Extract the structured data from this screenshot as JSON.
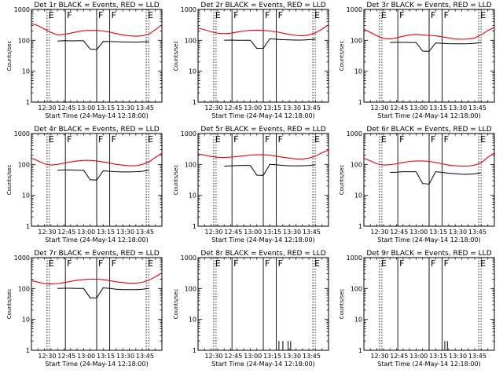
{
  "figure": {
    "ylabel": "Counts/sec",
    "xlabel": "Start Time (24-May-14 12:18:00)",
    "series_names": [
      "Events",
      "LLD"
    ],
    "colors": {
      "events": "#000000",
      "lld": "#e8000b",
      "axes": "#000000"
    },
    "x_range_min": [
      0,
      100
    ],
    "y_range": [
      1,
      1000
    ],
    "y_scale": "log",
    "x_tick_labels": [
      "12:30",
      "12:45",
      "13:00",
      "13:15",
      "13:30",
      "13:45"
    ],
    "y_tick_labels": [
      "1",
      "10",
      "100",
      "1000"
    ]
  },
  "chart_data": [
    {
      "type": "line",
      "title": "Det 1r BLACK = Events, RED = LLD",
      "xlabel": "Start Time (24-May-14 12:18:00)",
      "ylabel": "Counts/sec",
      "y_scale": "log",
      "ylim": [
        1,
        1000
      ],
      "x": [
        0,
        5,
        10,
        15,
        20,
        25,
        30,
        35,
        40,
        45,
        50,
        55,
        60,
        65,
        70,
        75,
        80,
        85,
        90,
        95,
        100
      ],
      "series": [
        {
          "values": [
            null,
            null,
            null,
            null,
            95,
            98,
            96,
            97,
            97,
            52,
            50,
            92,
            91,
            90,
            88,
            88,
            87,
            89,
            90,
            null,
            null
          ]
        },
        {
          "values": [
            350,
            300,
            230,
            180,
            150,
            155,
            170,
            190,
            205,
            210,
            210,
            200,
            185,
            165,
            150,
            140,
            135,
            140,
            160,
            220,
            320
          ]
        }
      ],
      "markers": [
        {
          "label": "E",
          "x_min": 12,
          "style": "dotted"
        },
        {
          "label": "F",
          "x_min": 26,
          "style": "solid"
        },
        {
          "label": "F",
          "x_min": 50,
          "style": "solid"
        },
        {
          "label": "F",
          "x_min": 60,
          "style": "solid"
        },
        {
          "label": "E",
          "x_min": 88,
          "style": "dotted"
        }
      ]
    },
    {
      "type": "line",
      "title": "Det 2r BLACK = Events, RED = LLD",
      "xlabel": "Start Time (24-May-14 12:18:00)",
      "ylabel": "Counts/sec",
      "y_scale": "log",
      "ylim": [
        1,
        1000
      ],
      "x": [
        0,
        5,
        10,
        15,
        20,
        25,
        30,
        35,
        40,
        45,
        50,
        55,
        60,
        65,
        70,
        75,
        80,
        85,
        90,
        95,
        100
      ],
      "series": [
        {
          "values": [
            null,
            null,
            null,
            null,
            100,
            102,
            100,
            101,
            101,
            55,
            55,
            112,
            108,
            105,
            103,
            102,
            102,
            105,
            110,
            null,
            null
          ]
        },
        {
          "values": [
            250,
            220,
            190,
            170,
            165,
            170,
            185,
            200,
            210,
            215,
            210,
            200,
            190,
            170,
            155,
            145,
            140,
            150,
            175,
            230,
            320
          ]
        }
      ],
      "markers": [
        {
          "label": "E",
          "x_min": 12,
          "style": "dotted"
        },
        {
          "label": "F",
          "x_min": 26,
          "style": "solid"
        },
        {
          "label": "F",
          "x_min": 50,
          "style": "solid"
        },
        {
          "label": "F",
          "x_min": 60,
          "style": "solid"
        },
        {
          "label": "E",
          "x_min": 88,
          "style": "dotted"
        }
      ]
    },
    {
      "type": "line",
      "title": "Det 3r BLACK = Events, RED = LLD",
      "xlabel": "Start Time (24-May-14 12:18:00)",
      "ylabel": "Counts/sec",
      "y_scale": "log",
      "ylim": [
        1,
        1000
      ],
      "x": [
        0,
        5,
        10,
        15,
        20,
        25,
        30,
        35,
        40,
        45,
        50,
        55,
        60,
        65,
        70,
        75,
        80,
        85,
        90,
        95,
        100
      ],
      "series": [
        {
          "values": [
            null,
            null,
            null,
            null,
            85,
            86,
            86,
            85,
            85,
            45,
            44,
            82,
            80,
            78,
            77,
            77,
            78,
            80,
            85,
            null,
            null
          ]
        },
        {
          "values": [
            230,
            180,
            140,
            115,
            110,
            120,
            135,
            150,
            155,
            150,
            145,
            140,
            130,
            120,
            110,
            108,
            110,
            120,
            150,
            210,
            260
          ]
        }
      ],
      "markers": [
        {
          "label": "E",
          "x_min": 12,
          "style": "dotted"
        },
        {
          "label": "F",
          "x_min": 26,
          "style": "solid"
        },
        {
          "label": "F",
          "x_min": 50,
          "style": "solid"
        },
        {
          "label": "F",
          "x_min": 60,
          "style": "solid"
        },
        {
          "label": "E",
          "x_min": 88,
          "style": "dotted"
        }
      ]
    },
    {
      "type": "line",
      "title": "Det 4r BLACK = Events, RED = LLD",
      "xlabel": "Start Time (24-May-14 12:18:00)",
      "ylabel": "Counts/sec",
      "y_scale": "log",
      "ylim": [
        1,
        1000
      ],
      "x": [
        0,
        5,
        10,
        15,
        20,
        25,
        30,
        35,
        40,
        45,
        50,
        55,
        60,
        65,
        70,
        75,
        80,
        85,
        90,
        95,
        100
      ],
      "series": [
        {
          "values": [
            null,
            null,
            null,
            null,
            65,
            66,
            66,
            65,
            65,
            32,
            31,
            62,
            60,
            58,
            57,
            57,
            58,
            60,
            65,
            null,
            null
          ]
        },
        {
          "values": [
            160,
            130,
            105,
            95,
            100,
            110,
            120,
            130,
            135,
            135,
            130,
            120,
            110,
            100,
            95,
            90,
            90,
            100,
            120,
            170,
            230
          ]
        }
      ],
      "markers": [
        {
          "label": "E",
          "x_min": 12,
          "style": "dotted"
        },
        {
          "label": "F",
          "x_min": 26,
          "style": "solid"
        },
        {
          "label": "F",
          "x_min": 50,
          "style": "solid"
        },
        {
          "label": "F",
          "x_min": 60,
          "style": "solid"
        },
        {
          "label": "E",
          "x_min": 88,
          "style": "dotted"
        }
      ]
    },
    {
      "type": "line",
      "title": "Det 5r BLACK = Events, RED = LLD",
      "xlabel": "Start Time (24-May-14 12:18:00)",
      "ylabel": "Counts/sec",
      "y_scale": "log",
      "ylim": [
        1,
        1000
      ],
      "x": [
        0,
        5,
        10,
        15,
        20,
        25,
        30,
        35,
        40,
        45,
        50,
        55,
        60,
        65,
        70,
        75,
        80,
        85,
        90,
        95,
        100
      ],
      "series": [
        {
          "values": [
            null,
            null,
            null,
            null,
            88,
            90,
            92,
            93,
            93,
            45,
            44,
            100,
            98,
            93,
            90,
            90,
            90,
            92,
            98,
            null,
            null
          ]
        },
        {
          "values": [
            220,
            200,
            180,
            170,
            168,
            172,
            180,
            190,
            200,
            205,
            205,
            200,
            185,
            170,
            160,
            150,
            150,
            160,
            185,
            240,
            290
          ]
        }
      ],
      "markers": [
        {
          "label": "E",
          "x_min": 12,
          "style": "dotted"
        },
        {
          "label": "F",
          "x_min": 26,
          "style": "solid"
        },
        {
          "label": "F",
          "x_min": 50,
          "style": "solid"
        },
        {
          "label": "F",
          "x_min": 60,
          "style": "solid"
        },
        {
          "label": "E",
          "x_min": 88,
          "style": "dotted"
        }
      ]
    },
    {
      "type": "line",
      "title": "Det 6r BLACK = Events, RED = LLD",
      "xlabel": "Start Time (24-May-14 12:18:00)",
      "ylabel": "Counts/sec",
      "y_scale": "log",
      "ylim": [
        1,
        1000
      ],
      "x": [
        0,
        5,
        10,
        15,
        20,
        25,
        30,
        35,
        40,
        45,
        50,
        55,
        60,
        65,
        70,
        75,
        80,
        85,
        90,
        95,
        100
      ],
      "series": [
        {
          "values": [
            null,
            null,
            null,
            null,
            55,
            56,
            58,
            58,
            58,
            24,
            23,
            58,
            55,
            52,
            50,
            48,
            48,
            50,
            54,
            null,
            null
          ]
        },
        {
          "values": [
            160,
            130,
            105,
            95,
            98,
            105,
            115,
            125,
            130,
            130,
            125,
            115,
            105,
            95,
            90,
            88,
            88,
            95,
            115,
            170,
            240
          ]
        }
      ],
      "markers": [
        {
          "label": "E",
          "x_min": 12,
          "style": "dotted"
        },
        {
          "label": "F",
          "x_min": 26,
          "style": "solid"
        },
        {
          "label": "F",
          "x_min": 50,
          "style": "solid"
        },
        {
          "label": "F",
          "x_min": 60,
          "style": "solid"
        },
        {
          "label": "E",
          "x_min": 88,
          "style": "dotted"
        }
      ]
    },
    {
      "type": "line",
      "title": "Det 7r BLACK = Events, RED = LLD",
      "xlabel": "Start Time (24-May-14 12:18:00)",
      "ylabel": "Counts/sec",
      "y_scale": "log",
      "ylim": [
        1,
        1000
      ],
      "x": [
        0,
        5,
        10,
        15,
        20,
        25,
        30,
        35,
        40,
        45,
        50,
        55,
        60,
        65,
        70,
        75,
        80,
        85,
        90,
        95,
        100
      ],
      "series": [
        {
          "values": [
            null,
            null,
            null,
            null,
            100,
            102,
            102,
            100,
            100,
            50,
            50,
            105,
            100,
            95,
            92,
            92,
            92,
            95,
            100,
            null,
            null
          ]
        },
        {
          "values": [
            180,
            160,
            145,
            140,
            145,
            155,
            170,
            185,
            195,
            200,
            200,
            195,
            180,
            165,
            155,
            148,
            148,
            158,
            185,
            240,
            320
          ]
        }
      ],
      "markers": [
        {
          "label": "E",
          "x_min": 12,
          "style": "dotted"
        },
        {
          "label": "F",
          "x_min": 26,
          "style": "solid"
        },
        {
          "label": "F",
          "x_min": 50,
          "style": "solid"
        },
        {
          "label": "F",
          "x_min": 60,
          "style": "solid"
        },
        {
          "label": "E",
          "x_min": 88,
          "style": "dotted"
        }
      ]
    },
    {
      "type": "line",
      "title": "Det 8r BLACK = Events, RED = LLD",
      "xlabel": "Start Time (24-May-14 12:18:00)",
      "ylabel": "Counts/sec",
      "y_scale": "log",
      "ylim": [
        1,
        1000
      ],
      "x": [],
      "series": [],
      "spikes": [
        {
          "x_min": 62,
          "peak": 2
        },
        {
          "x_min": 65,
          "peak": 2
        },
        {
          "x_min": 69,
          "peak": 2
        },
        {
          "x_min": 71,
          "peak": 2
        }
      ],
      "markers": [
        {
          "label": "E",
          "x_min": 12,
          "style": "dotted"
        },
        {
          "label": "F",
          "x_min": 26,
          "style": "solid"
        },
        {
          "label": "F",
          "x_min": 50,
          "style": "solid"
        },
        {
          "label": "F",
          "x_min": 60,
          "style": "solid"
        },
        {
          "label": "E",
          "x_min": 88,
          "style": "dotted"
        }
      ]
    },
    {
      "type": "line",
      "title": "Det 9r BLACK = Events, RED = LLD",
      "xlabel": "Start Time (24-May-14 12:18:00)",
      "ylabel": "Counts/sec",
      "y_scale": "log",
      "ylim": [
        1,
        1000
      ],
      "x": [],
      "series": [],
      "spikes": [
        {
          "x_min": 62,
          "peak": 2
        },
        {
          "x_min": 64,
          "peak": 2
        }
      ],
      "markers": [
        {
          "label": "E",
          "x_min": 12,
          "style": "dotted"
        },
        {
          "label": "F",
          "x_min": 26,
          "style": "solid"
        },
        {
          "label": "F",
          "x_min": 50,
          "style": "solid"
        },
        {
          "label": "F",
          "x_min": 60,
          "style": "solid"
        },
        {
          "label": "E",
          "x_min": 88,
          "style": "dotted"
        }
      ]
    }
  ]
}
